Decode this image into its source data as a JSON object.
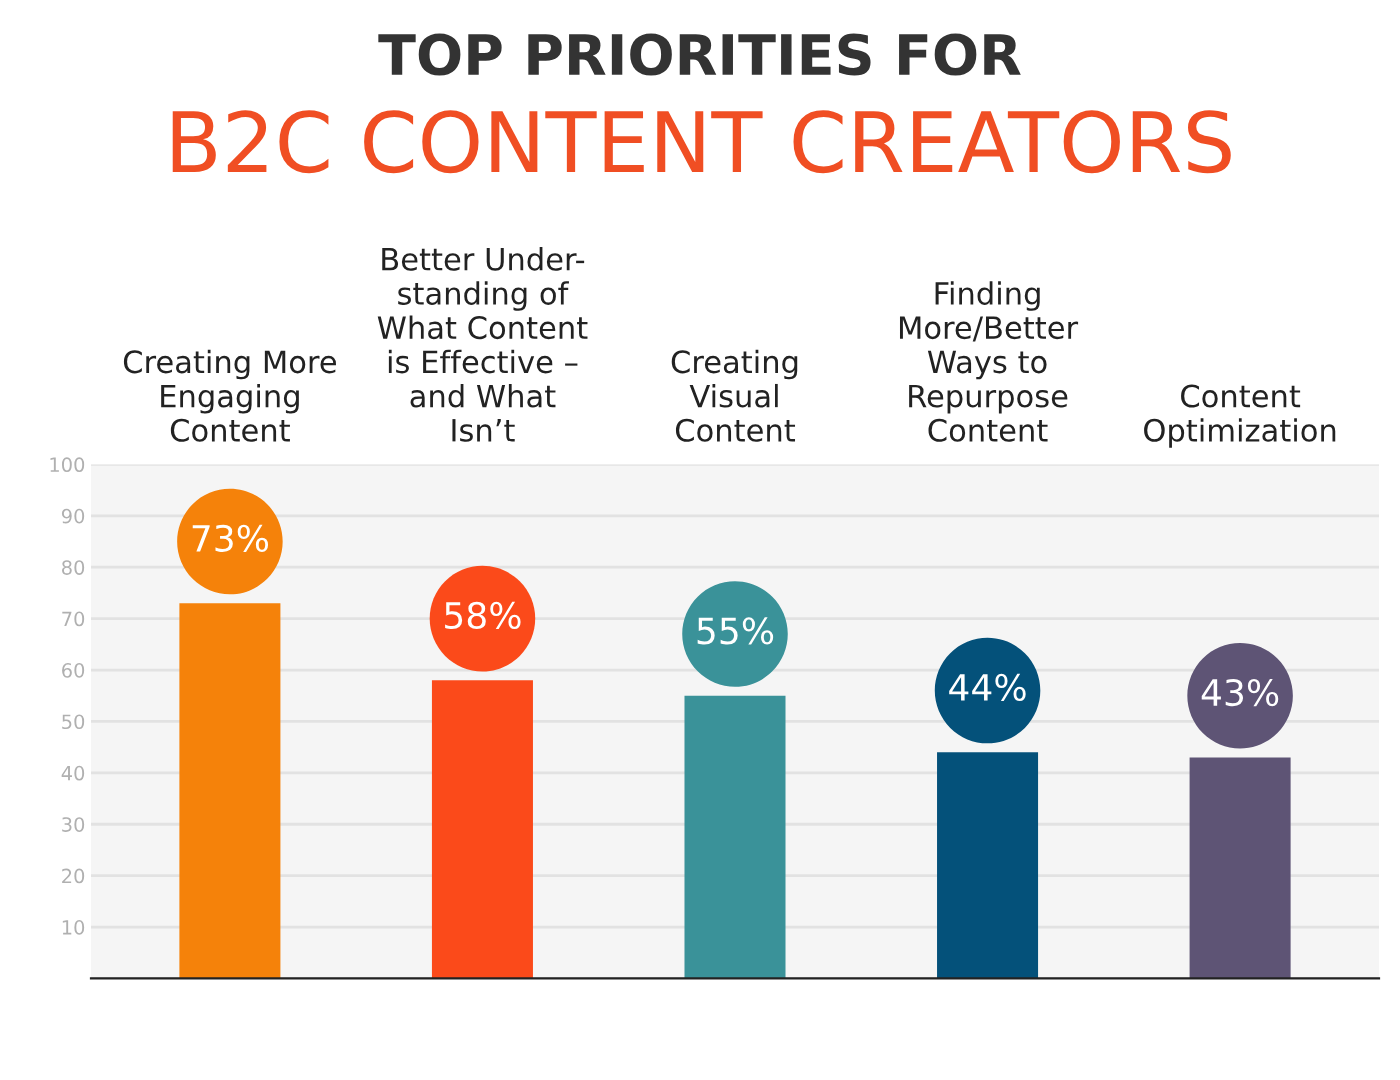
{
  "chart_data": {
    "type": "bar",
    "title": "TOP PRIORITIES FOR",
    "subtitle": "B2C CONTENT CREATORS",
    "categories": [
      "Creating More\nEngaging\nContent",
      "Better Under-\nstanding of\nWhat Content\nis Effective –\nand What\nIsn’t",
      "Creating\nVisual\nContent",
      "Finding\nMore/Better\nWays to\nRepurpose\nContent",
      "Content\nOptimization"
    ],
    "values": [
      73,
      58,
      55,
      44,
      43
    ],
    "colors": [
      "#f5820a",
      "#fb4a1a",
      "#3a9299",
      "#04517a",
      "#5e5475"
    ],
    "value_labels": [
      "73%",
      "58%",
      "55%",
      "44%",
      "43%"
    ],
    "ylim": [
      0,
      100
    ],
    "yticks": [
      {
        "value": 0,
        "label": null
      },
      10,
      20,
      30,
      40,
      50,
      60,
      70,
      80,
      90,
      100
    ],
    "grid": "y"
  }
}
